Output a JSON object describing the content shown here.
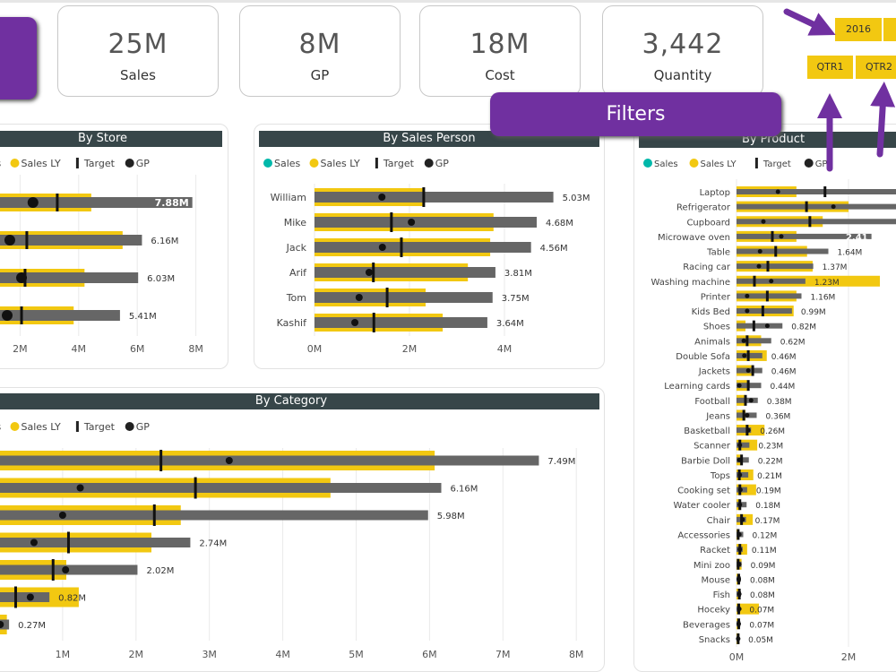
{
  "kpis": [
    {
      "value": "25M",
      "label": "Sales"
    },
    {
      "value": "8M",
      "label": "GP"
    },
    {
      "value": "18M",
      "label": "Cost"
    },
    {
      "value": "3,442",
      "label": "Quantity"
    }
  ],
  "filters_label": "Filters",
  "slicers": {
    "year": [
      "2016"
    ],
    "quarters": [
      "QTR1",
      "QTR2"
    ]
  },
  "colors": {
    "sales": "#01b8aa",
    "sales_ly": "#f2c811",
    "bar": "#666666",
    "header": "#374649",
    "annotation": "#7030a0"
  },
  "legend": [
    {
      "label": "Sales",
      "symbol": "dot",
      "color": "#01b8aa"
    },
    {
      "label": "Sales LY",
      "symbol": "dot",
      "color": "#f2c811"
    },
    {
      "label": "Target",
      "symbol": "bar",
      "color": "#222222"
    },
    {
      "label": "GP",
      "symbol": "dot",
      "color": "#222222"
    }
  ],
  "chart_data": [
    {
      "id": "store",
      "title": "By Store",
      "type": "bar",
      "ticks": [
        "2M",
        "4M",
        "6M",
        "8M"
      ],
      "tick_values": [
        2,
        4,
        6,
        8
      ],
      "categories": [],
      "sales": [
        7.88,
        6.16,
        6.03,
        5.41
      ],
      "labels": [
        "7.88M",
        "6.16M",
        "6.03M",
        "5.41M"
      ],
      "sales_ly": [
        4.43,
        5.5,
        4.2,
        3.83
      ],
      "target": [
        3.27,
        2.23,
        2.17,
        2.05
      ],
      "gp": [
        2.44,
        1.65,
        2.05,
        1.56
      ]
    },
    {
      "id": "person",
      "title": "By Sales Person",
      "type": "bar",
      "ticks": [
        "0M",
        "2M",
        "4M"
      ],
      "tick_values": [
        0,
        2,
        4
      ],
      "categories": [
        "William",
        "Mike",
        "Jack",
        "Arif",
        "Tom",
        "Kashif"
      ],
      "sales": [
        5.03,
        4.68,
        4.56,
        3.81,
        3.75,
        3.64
      ],
      "labels": [
        "5.03M",
        "4.68M",
        "4.56M",
        "3.81M",
        "3.75M",
        "3.64M"
      ],
      "sales_ly": [
        2.3,
        3.77,
        3.7,
        3.23,
        2.34,
        2.7
      ],
      "target": [
        2.3,
        1.62,
        1.83,
        1.24,
        1.53,
        1.25
      ],
      "gp": [
        1.42,
        2.04,
        1.43,
        1.15,
        0.94,
        0.85
      ]
    },
    {
      "id": "category",
      "title": "By Category",
      "type": "bar",
      "ticks": [
        "1M",
        "2M",
        "3M",
        "4M",
        "5M",
        "6M",
        "7M",
        "8M"
      ],
      "tick_values": [
        1,
        2,
        3,
        4,
        5,
        6,
        7,
        8
      ],
      "categories": [],
      "sales": [
        7.49,
        6.16,
        5.98,
        2.74,
        2.02,
        0.82,
        0.27
      ],
      "labels": [
        "7.49M",
        "6.16M",
        "5.98M",
        "2.74M",
        "2.02M",
        "0.82M",
        "0.27M"
      ],
      "sales_ly": [
        6.07,
        4.65,
        2.61,
        2.21,
        1.05,
        1.22,
        0.24
      ],
      "target": [
        2.34,
        2.81,
        2.25,
        1.08,
        0.87,
        0.36,
        0.1
      ],
      "gp": [
        3.27,
        1.24,
        1.0,
        0.61,
        1.04,
        0.56,
        0.15
      ]
    },
    {
      "id": "product",
      "title": "By Product",
      "type": "bar",
      "ticks": [
        "0M",
        "2M"
      ],
      "tick_values": [
        0,
        2
      ],
      "categories": [
        "Laptop",
        "Refrigerator",
        "Cupboard",
        "Microwave oven",
        "Table",
        "Racing car",
        "Washing machine",
        "Printer",
        "Kids Bed",
        "Shoes",
        "Animals",
        "Double Sofa",
        "Jackets",
        "Learning cards",
        "Football",
        "Jeans",
        "Basketball",
        "Scanner",
        "Barbie Doll",
        "Tops",
        "Cooking set",
        "Water cooler",
        "Chair",
        "Accessories",
        "Racket",
        "Mini zoo",
        "Mouse",
        "Fish",
        "Hoceky",
        "Beverages",
        "Snacks"
      ],
      "sales": [
        3.3,
        3.2,
        3.1,
        2.41,
        1.64,
        1.37,
        1.23,
        1.16,
        0.99,
        0.82,
        0.62,
        0.46,
        0.46,
        0.44,
        0.38,
        0.36,
        0.26,
        0.23,
        0.22,
        0.21,
        0.19,
        0.18,
        0.17,
        0.12,
        0.11,
        0.09,
        0.08,
        0.08,
        0.07,
        0.07,
        0.05
      ],
      "labels": [
        "",
        "",
        "",
        "2.41",
        "1.64M",
        "1.37M",
        "1.23M",
        "1.16M",
        "0.99M",
        "0.82M",
        "0.62M",
        "0.46M",
        "0.46M",
        "0.44M",
        "0.38M",
        "0.36M",
        "0.26M",
        "0.23M",
        "0.22M",
        "0.21M",
        "0.19M",
        "0.18M",
        "0.17M",
        "0.12M",
        "0.11M",
        "0.09M",
        "0.08M",
        "0.08M",
        "0.07M",
        "0.07M",
        "0.05M"
      ],
      "sales_ly": [
        1.07,
        2.0,
        1.54,
        1.07,
        1.26,
        1.36,
        2.56,
        1.07,
        1.02,
        0.16,
        0.44,
        0.54,
        0.29,
        0.19,
        0.16,
        0.16,
        0.5,
        0.37,
        0.07,
        0.3,
        0.35,
        0.07,
        0.29,
        0.05,
        0.19,
        0.09,
        0.05,
        0.06,
        0.4,
        0.03,
        0.05
      ],
      "target": [
        1.58,
        1.25,
        1.31,
        0.64,
        0.7,
        0.56,
        0.32,
        0.55,
        0.47,
        0.31,
        0.19,
        0.21,
        0.29,
        0.21,
        0.16,
        0.13,
        0.19,
        0.06,
        0.09,
        0.05,
        0.06,
        0.06,
        0.09,
        0.03,
        0.06,
        0.03,
        0.04,
        0.05,
        0.04,
        0.04,
        0.03
      ],
      "gp": [
        0.74,
        1.73,
        0.48,
        0.8,
        0.42,
        0.4,
        0.62,
        0.19,
        0.19,
        0.55,
        0.13,
        0.14,
        0.21,
        0.05,
        0.26,
        0.19,
        0.21,
        0.06,
        0.05,
        0.06,
        0.07,
        0.06,
        0.11,
        0.05,
        0.06,
        0.05,
        0.04,
        0.05,
        0.05,
        0.04,
        0.03
      ]
    }
  ]
}
